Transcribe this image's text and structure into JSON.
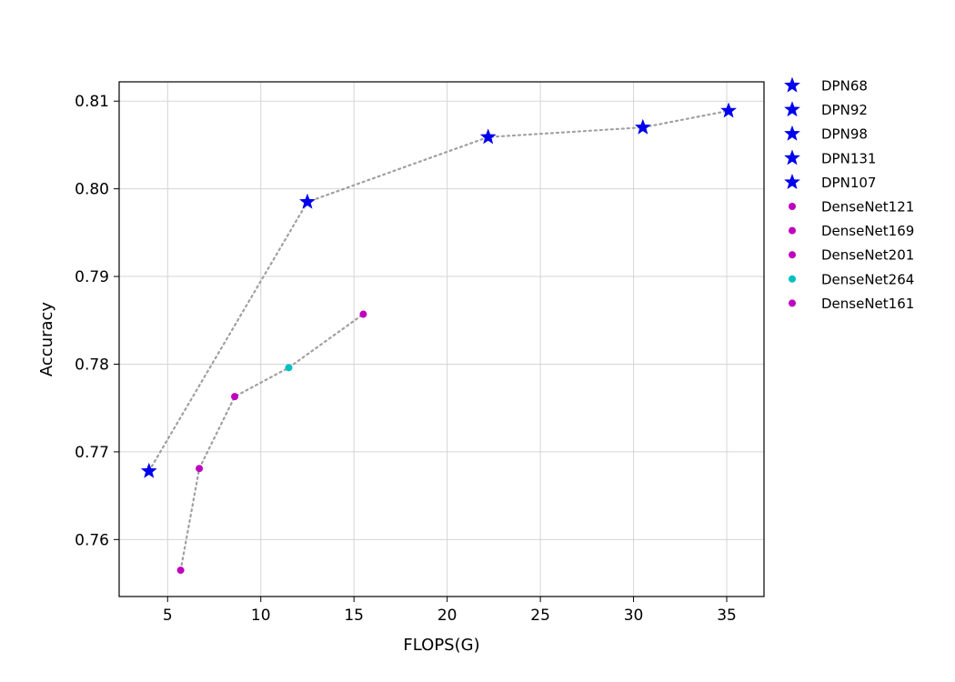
{
  "chart_data": {
    "type": "scatter",
    "title": "",
    "xlabel": "FLOPS(G)",
    "ylabel": "Accuracy",
    "xlim": [
      2.4,
      37
    ],
    "ylim": [
      0.7535,
      0.8122
    ],
    "xticks": [
      5,
      10,
      15,
      20,
      25,
      30,
      35
    ],
    "yticks": [
      0.76,
      0.77,
      0.78,
      0.79,
      0.8,
      0.81
    ],
    "ytick_labels": [
      "0.76",
      "0.77",
      "0.78",
      "0.79",
      "0.80",
      "0.81"
    ],
    "grid": true,
    "legend_position": "outside-right",
    "line_color": "#a0a0a0",
    "series": [
      {
        "name": "DPN68",
        "x": 4.0,
        "y": 0.7678,
        "marker": "star",
        "color": "#0000ee",
        "group": "DPN"
      },
      {
        "name": "DPN92",
        "x": 12.5,
        "y": 0.7985,
        "marker": "star",
        "color": "#0000ee",
        "group": "DPN"
      },
      {
        "name": "DPN98",
        "x": 22.2,
        "y": 0.8059,
        "marker": "star",
        "color": "#0000ee",
        "group": "DPN"
      },
      {
        "name": "DPN131",
        "x": 30.5,
        "y": 0.807,
        "marker": "star",
        "color": "#0000ee",
        "group": "DPN"
      },
      {
        "name": "DPN107",
        "x": 35.1,
        "y": 0.8089,
        "marker": "star",
        "color": "#0000ee",
        "group": "DPN"
      },
      {
        "name": "DenseNet121",
        "x": 5.7,
        "y": 0.7565,
        "marker": "circle",
        "color": "#bf00bf",
        "group": "DenseNet"
      },
      {
        "name": "DenseNet169",
        "x": 6.7,
        "y": 0.7681,
        "marker": "circle",
        "color": "#bf00bf",
        "group": "DenseNet"
      },
      {
        "name": "DenseNet201",
        "x": 8.6,
        "y": 0.7763,
        "marker": "circle",
        "color": "#bf00bf",
        "group": "DenseNet"
      },
      {
        "name": "DenseNet264",
        "x": 11.5,
        "y": 0.7796,
        "marker": "circle",
        "color": "#00bfbf",
        "group": "DenseNet"
      },
      {
        "name": "DenseNet161",
        "x": 15.5,
        "y": 0.7857,
        "marker": "circle",
        "color": "#bf00bf",
        "group": "DenseNet"
      }
    ]
  }
}
